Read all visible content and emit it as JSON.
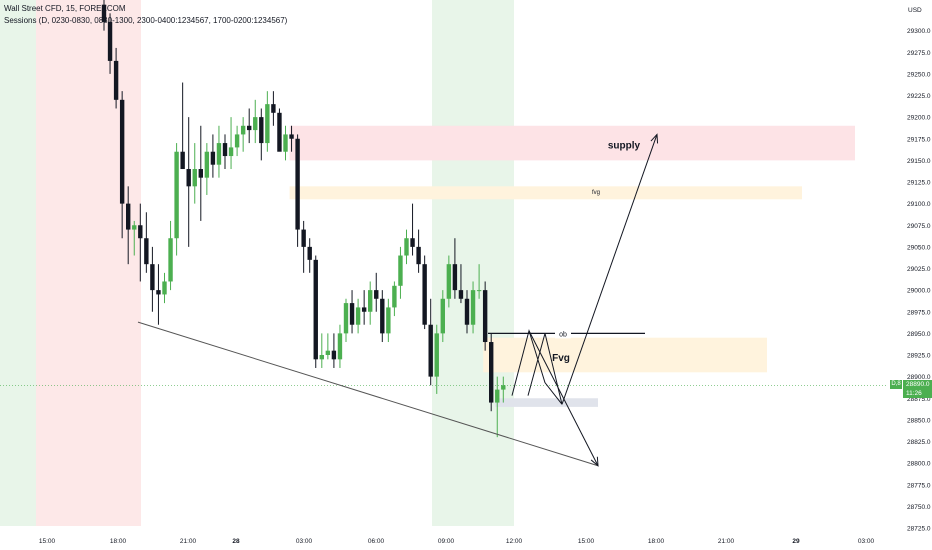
{
  "header": {
    "title": "Wall Street CFD, 15, FOREXCOM",
    "sessions": "Sessions (D, 0230-0830, 0830-1300, 2300-0400:1234567, 1700-0200:1234567)"
  },
  "price_axis": {
    "currency": "USD"
  },
  "last_price": {
    "label": "D,8",
    "value": "28890.0",
    "countdown": "11:26"
  },
  "colors": {
    "bull": "#4caf50",
    "bear": "#131722",
    "session_green": "#e8f5e9",
    "session_red": "#fde8e8",
    "supply_zone": "#fde3e6",
    "fvg_zone": "#fff3dd",
    "ob_zone": "#e0e3eb"
  },
  "annotations": {
    "supply": "supply",
    "fvg_upper": "fvg",
    "fvg_lower": "Fvg",
    "ob": "ob"
  },
  "chart_data": {
    "type": "candlestick",
    "title": "Wall Street CFD, 15, FOREXCOM",
    "ylim": [
      28712.5,
      29337.5
    ],
    "y_ticks": [
      29300.0,
      29275.0,
      29250.0,
      29225.0,
      29200.0,
      29175.0,
      29150.0,
      29125.0,
      29100.0,
      29075.0,
      29050.0,
      29025.0,
      29000.0,
      28975.0,
      28950.0,
      28925.0,
      28900.0,
      28875.0,
      28850.0,
      28825.0,
      28800.0,
      28775.0,
      28750.0,
      28725.0
    ],
    "x_labels": [
      "15:00",
      "18:00",
      "21:00",
      "28",
      "03:00",
      "06:00",
      "09:00",
      "12:00",
      "15:00",
      "18:00",
      "21:00",
      "29",
      "03:00"
    ],
    "candles_ohlc": [
      [
        29330,
        29340,
        29300,
        29310
      ],
      [
        29310,
        29320,
        29250,
        29265
      ],
      [
        29265,
        29280,
        29210,
        29220
      ],
      [
        29220,
        29230,
        29060,
        29100
      ],
      [
        29100,
        29120,
        29030,
        29070
      ],
      [
        29070,
        29080,
        29040,
        29075
      ],
      [
        29075,
        29100,
        29010,
        29060
      ],
      [
        29060,
        29090,
        29020,
        29030
      ],
      [
        29030,
        29050,
        28975,
        29000
      ],
      [
        29000,
        29030,
        28960,
        28995
      ],
      [
        28995,
        29020,
        28985,
        29010
      ],
      [
        29010,
        29080,
        29000,
        29060
      ],
      [
        29060,
        29170,
        29040,
        29160
      ],
      [
        29160,
        29240,
        29150,
        29140
      ],
      [
        29140,
        29200,
        29050,
        29120
      ],
      [
        29120,
        29170,
        29100,
        29140
      ],
      [
        29140,
        29190,
        29080,
        29130
      ],
      [
        29130,
        29170,
        29110,
        29160
      ],
      [
        29160,
        29180,
        29130,
        29145
      ],
      [
        29145,
        29190,
        29130,
        29170
      ],
      [
        29170,
        29180,
        29140,
        29155
      ],
      [
        29155,
        29200,
        29140,
        29165
      ],
      [
        29165,
        29190,
        29155,
        29180
      ],
      [
        29180,
        29200,
        29160,
        29190
      ],
      [
        29190,
        29210,
        29170,
        29185
      ],
      [
        29185,
        29220,
        29170,
        29200
      ],
      [
        29200,
        29210,
        29150,
        29170
      ],
      [
        29170,
        29230,
        29160,
        29215
      ],
      [
        29215,
        29230,
        29190,
        29205
      ],
      [
        29205,
        29210,
        29170,
        29160
      ],
      [
        29160,
        29190,
        29150,
        29180
      ],
      [
        29180,
        29190,
        29160,
        29175
      ],
      [
        29175,
        29180,
        29050,
        29070
      ],
      [
        29070,
        29080,
        29020,
        29050
      ],
      [
        29050,
        29060,
        29020,
        29035
      ],
      [
        29035,
        29040,
        28910,
        28920
      ],
      [
        28920,
        28950,
        28910,
        28925
      ],
      [
        28925,
        28950,
        28920,
        28930
      ],
      [
        28930,
        28950,
        28910,
        28920
      ],
      [
        28920,
        28960,
        28910,
        28950
      ],
      [
        28950,
        28990,
        28940,
        28985
      ],
      [
        28985,
        29000,
        28950,
        28960
      ],
      [
        28960,
        28990,
        28950,
        28980
      ],
      [
        28980,
        29000,
        28960,
        28975
      ],
      [
        28975,
        29010,
        28960,
        29000
      ],
      [
        29000,
        29020,
        28975,
        28990
      ],
      [
        28990,
        29000,
        28940,
        28950
      ],
      [
        28950,
        28990,
        28940,
        28980
      ],
      [
        28980,
        29010,
        28970,
        29005
      ],
      [
        29005,
        29050,
        28990,
        29040
      ],
      [
        29040,
        29070,
        29030,
        29060
      ],
      [
        29060,
        29100,
        29040,
        29050
      ],
      [
        29050,
        29070,
        29020,
        29030
      ],
      [
        29030,
        29040,
        28955,
        28960
      ],
      [
        28960,
        28990,
        28890,
        28900
      ],
      [
        28900,
        28960,
        28880,
        28950
      ],
      [
        28950,
        29000,
        28940,
        28990
      ],
      [
        28990,
        29040,
        28980,
        29030
      ],
      [
        29030,
        29060,
        28990,
        29000
      ],
      [
        29000,
        29030,
        28985,
        28990
      ],
      [
        28990,
        29000,
        28950,
        28960
      ],
      [
        28960,
        29010,
        28950,
        29000
      ],
      [
        29000,
        29030,
        28990,
        29000
      ],
      [
        29000,
        29010,
        28930,
        28940
      ],
      [
        28940,
        28950,
        28860,
        28870
      ],
      [
        28870,
        28900,
        28830,
        28885
      ],
      [
        28885,
        28900,
        28870,
        28890
      ]
    ],
    "zones": [
      {
        "label": "supply",
        "top": 29190,
        "bottom": 29150,
        "x_start_index": 32,
        "x_end": "after last candle"
      },
      {
        "label": "fvg",
        "top": 29120,
        "bottom": 29105,
        "x_start_index": 32,
        "x_end": "after last candle"
      },
      {
        "label": "Fvg",
        "top": 28945,
        "bottom": 28905,
        "x_start_index": 64,
        "x_end": "after last candle"
      },
      {
        "label": "ob",
        "top": 28875,
        "bottom": 28865,
        "x_start_index": 66,
        "x_end": "after last candle"
      }
    ],
    "trendline": [
      [
        28963,
        28797
      ]
    ],
    "ob_level": 28950,
    "current_price": 28890.0
  }
}
